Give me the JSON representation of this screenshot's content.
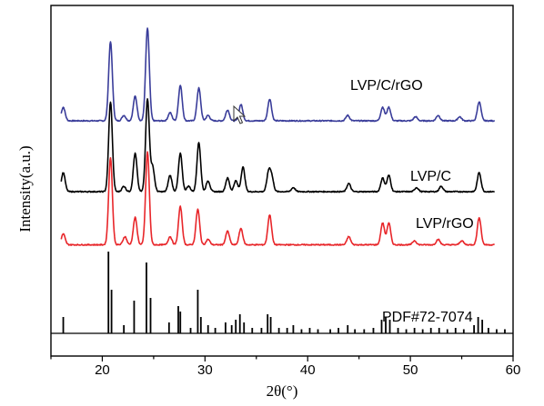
{
  "chart_data": {
    "type": "line",
    "xlabel": "2θ(°)",
    "ylabel": "Intensity(a.u.)",
    "xlim": [
      15,
      60
    ],
    "xticks": [
      20,
      30,
      40,
      50,
      60
    ],
    "xtick_labels": [
      "20",
      "30",
      "40",
      "50",
      "60"
    ],
    "grid": false,
    "legend": "labels placed beside each curve on the right",
    "series": [
      {
        "name": "LVP/C/rGO",
        "color": "#3a3d9a",
        "baseline": 0.78,
        "peaks": [
          [
            16.2,
            0.05
          ],
          [
            20.8,
            0.29
          ],
          [
            22.1,
            0.02
          ],
          [
            23.2,
            0.09
          ],
          [
            24.4,
            0.34
          ],
          [
            26.6,
            0.03
          ],
          [
            27.6,
            0.13
          ],
          [
            29.4,
            0.12
          ],
          [
            30.3,
            0.02
          ],
          [
            32.2,
            0.04
          ],
          [
            33.5,
            0.06
          ],
          [
            36.3,
            0.08
          ],
          [
            43.9,
            0.02
          ],
          [
            47.3,
            0.05
          ],
          [
            47.9,
            0.05
          ],
          [
            50.5,
            0.015
          ],
          [
            52.7,
            0.02
          ],
          [
            54.8,
            0.015
          ],
          [
            56.7,
            0.07
          ]
        ]
      },
      {
        "name": "LVP/C",
        "color": "#000000",
        "baseline": 0.52,
        "peaks": [
          [
            16.2,
            0.07
          ],
          [
            20.8,
            0.33
          ],
          [
            22.1,
            0.02
          ],
          [
            23.2,
            0.14
          ],
          [
            24.4,
            0.34
          ],
          [
            24.9,
            0.09
          ],
          [
            26.6,
            0.06
          ],
          [
            27.6,
            0.14
          ],
          [
            28.4,
            0.02
          ],
          [
            29.4,
            0.18
          ],
          [
            30.3,
            0.04
          ],
          [
            32.2,
            0.05
          ],
          [
            33.0,
            0.04
          ],
          [
            33.7,
            0.09
          ],
          [
            36.2,
            0.07
          ],
          [
            36.5,
            0.05
          ],
          [
            38.6,
            0.015
          ],
          [
            44.0,
            0.03
          ],
          [
            47.3,
            0.05
          ],
          [
            47.9,
            0.06
          ],
          [
            50.6,
            0.015
          ],
          [
            53.0,
            0.02
          ],
          [
            56.7,
            0.07
          ]
        ]
      },
      {
        "name": "LVP/rGO",
        "color": "#e8262a",
        "baseline": 0.325,
        "peaks": [
          [
            16.2,
            0.04
          ],
          [
            20.8,
            0.32
          ],
          [
            22.2,
            0.03
          ],
          [
            23.2,
            0.1
          ],
          [
            24.4,
            0.34
          ],
          [
            26.6,
            0.03
          ],
          [
            27.6,
            0.14
          ],
          [
            29.3,
            0.13
          ],
          [
            30.3,
            0.02
          ],
          [
            32.2,
            0.05
          ],
          [
            33.5,
            0.06
          ],
          [
            36.3,
            0.11
          ],
          [
            44.0,
            0.03
          ],
          [
            47.3,
            0.08
          ],
          [
            47.9,
            0.08
          ],
          [
            50.4,
            0.015
          ],
          [
            52.7,
            0.02
          ],
          [
            55.0,
            0.015
          ],
          [
            56.7,
            0.1
          ]
        ]
      }
    ],
    "reference": {
      "name": "PDF#72-7074",
      "color": "#000000",
      "baseline": 0.0,
      "sticks": [
        [
          16.2,
          0.06
        ],
        [
          20.6,
          0.3
        ],
        [
          20.9,
          0.16
        ],
        [
          22.1,
          0.03
        ],
        [
          23.1,
          0.12
        ],
        [
          24.3,
          0.26
        ],
        [
          24.7,
          0.13
        ],
        [
          26.5,
          0.04
        ],
        [
          27.4,
          0.1
        ],
        [
          27.6,
          0.08
        ],
        [
          28.6,
          0.02
        ],
        [
          29.3,
          0.16
        ],
        [
          29.6,
          0.06
        ],
        [
          30.3,
          0.03
        ],
        [
          31.0,
          0.02
        ],
        [
          32.0,
          0.04
        ],
        [
          32.6,
          0.03
        ],
        [
          33.0,
          0.05
        ],
        [
          33.4,
          0.07
        ],
        [
          33.8,
          0.04
        ],
        [
          34.6,
          0.02
        ],
        [
          35.5,
          0.02
        ],
        [
          36.1,
          0.07
        ],
        [
          36.4,
          0.06
        ],
        [
          37.2,
          0.02
        ],
        [
          38.0,
          0.02
        ],
        [
          38.6,
          0.03
        ],
        [
          39.4,
          0.015
        ],
        [
          40.2,
          0.02
        ],
        [
          41.0,
          0.015
        ],
        [
          42.2,
          0.015
        ],
        [
          43.0,
          0.02
        ],
        [
          43.9,
          0.03
        ],
        [
          44.6,
          0.015
        ],
        [
          45.5,
          0.015
        ],
        [
          46.4,
          0.02
        ],
        [
          47.2,
          0.05
        ],
        [
          47.6,
          0.06
        ],
        [
          48.0,
          0.05
        ],
        [
          48.8,
          0.02
        ],
        [
          49.6,
          0.015
        ],
        [
          50.4,
          0.02
        ],
        [
          51.2,
          0.015
        ],
        [
          52.0,
          0.02
        ],
        [
          52.8,
          0.02
        ],
        [
          53.6,
          0.015
        ],
        [
          54.4,
          0.02
        ],
        [
          55.2,
          0.015
        ],
        [
          56.2,
          0.03
        ],
        [
          56.6,
          0.06
        ],
        [
          57.0,
          0.05
        ],
        [
          57.6,
          0.02
        ],
        [
          58.4,
          0.015
        ],
        [
          59.2,
          0.015
        ]
      ]
    }
  }
}
